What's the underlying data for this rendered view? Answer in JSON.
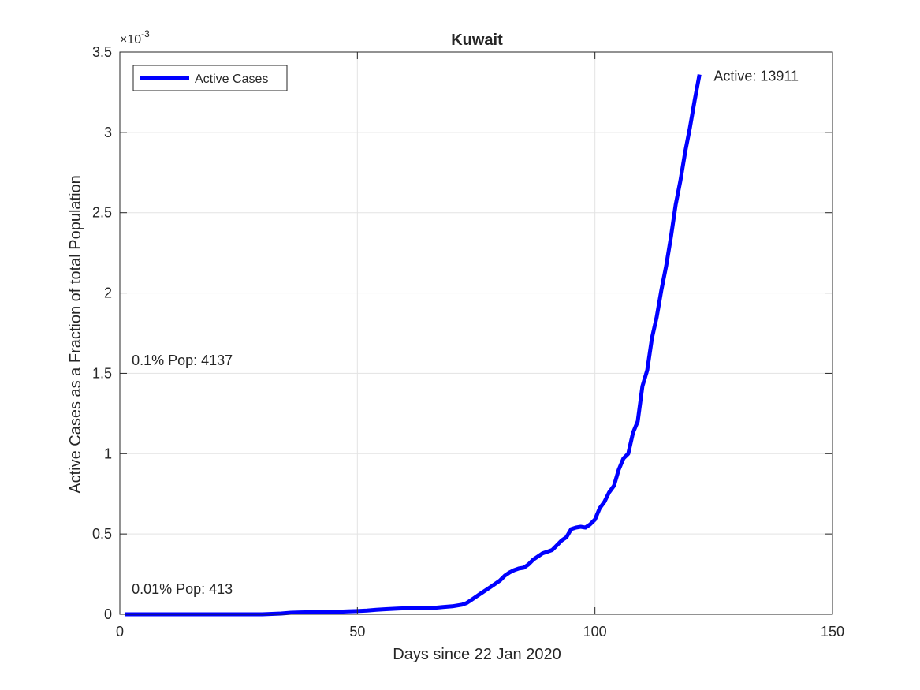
{
  "chart_data": {
    "type": "line",
    "title": "Kuwait",
    "xlabel": "Days since 22 Jan 2020",
    "ylabel": "Active Cases as a Fraction of total Population",
    "y_exponent_label": "×10",
    "y_exponent_power": "-3",
    "xlim": [
      0,
      150
    ],
    "ylim": [
      0,
      3.5
    ],
    "x_ticks": [
      0,
      50,
      100,
      150
    ],
    "x_tick_labels": [
      "0",
      "50",
      "100",
      "150"
    ],
    "y_ticks": [
      0,
      0.5,
      1,
      1.5,
      2,
      2.5,
      3,
      3.5
    ],
    "y_tick_labels": [
      "0",
      "0.5",
      "1",
      "1.5",
      "2",
      "2.5",
      "3",
      "3.5"
    ],
    "grid": true,
    "legend_position": "top-left",
    "series": [
      {
        "name": "Active Cases",
        "color": "#0000ff",
        "x": [
          1,
          5,
          10,
          15,
          20,
          25,
          30,
          34,
          36,
          38,
          40,
          42,
          44,
          46,
          48,
          50,
          52,
          54,
          56,
          58,
          60,
          62,
          64,
          66,
          68,
          70,
          72,
          73,
          74,
          75,
          76,
          77,
          78,
          79,
          80,
          81,
          82,
          83,
          84,
          85,
          86,
          87,
          88,
          89,
          90,
          91,
          92,
          93,
          94,
          95,
          96,
          97,
          98,
          99,
          100,
          101,
          102,
          103,
          104,
          105,
          106,
          107,
          108,
          109,
          110,
          111,
          112,
          113,
          114,
          115,
          116,
          117,
          118,
          119,
          120,
          121,
          122
        ],
        "y": [
          0,
          0,
          0,
          0,
          0,
          0,
          0,
          0.005,
          0.01,
          0.012,
          0.013,
          0.014,
          0.015,
          0.016,
          0.018,
          0.02,
          0.023,
          0.028,
          0.032,
          0.035,
          0.038,
          0.04,
          0.037,
          0.04,
          0.045,
          0.05,
          0.06,
          0.07,
          0.09,
          0.11,
          0.13,
          0.15,
          0.17,
          0.19,
          0.21,
          0.24,
          0.26,
          0.275,
          0.285,
          0.29,
          0.31,
          0.34,
          0.36,
          0.38,
          0.39,
          0.4,
          0.43,
          0.46,
          0.48,
          0.53,
          0.54,
          0.545,
          0.54,
          0.56,
          0.59,
          0.66,
          0.7,
          0.76,
          0.8,
          0.9,
          0.97,
          1.0,
          1.13,
          1.2,
          1.42,
          1.52,
          1.72,
          1.85,
          2.02,
          2.17,
          2.35,
          2.55,
          2.7,
          2.88,
          3.03,
          3.2,
          3.36
        ]
      }
    ],
    "annotations": [
      {
        "text": "Active: 13911",
        "x": 125,
        "y": 3.35
      },
      {
        "text": "0.1% Pop: 4137",
        "x": 2.5,
        "y": 1.58
      },
      {
        "text": "0.01% Pop: 413",
        "x": 2.5,
        "y": 0.158
      }
    ]
  }
}
